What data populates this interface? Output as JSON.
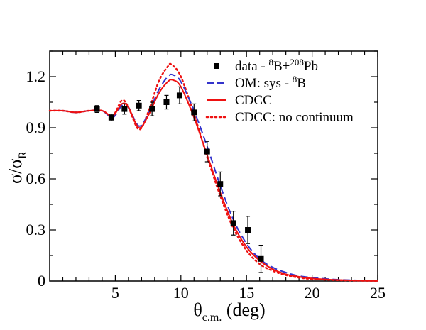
{
  "chart_data": {
    "type": "scatter",
    "xlabel": {
      "main": "θ",
      "sub": "c.m.",
      "rest": " (deg)"
    },
    "ylabel": {
      "main": "σ/σ",
      "sub": "R"
    },
    "xlim": [
      0,
      25
    ],
    "ylim": [
      0,
      1.35
    ],
    "xticks": [
      5,
      10,
      15,
      20,
      25
    ],
    "yticks": [
      0,
      0.3,
      0.6,
      0.9,
      1.2
    ],
    "ytick_labels": [
      "0",
      "0.3",
      "0.6",
      "0.9",
      "1.2"
    ],
    "grid": false,
    "legend_position": "top-right",
    "legend": [
      {
        "key": "data",
        "parts": [
          {
            "t": "data - "
          },
          {
            "t": "8",
            "sup": true
          },
          {
            "t": "B+"
          },
          {
            "t": "208",
            "sup": true
          },
          {
            "t": "Pb"
          }
        ]
      },
      {
        "key": "om",
        "parts": [
          {
            "t": "OM: sys - "
          },
          {
            "t": "8",
            "sup": true
          },
          {
            "t": "B"
          }
        ]
      },
      {
        "key": "cdcc",
        "parts": [
          {
            "t": "CDCC"
          }
        ]
      },
      {
        "key": "nocont",
        "parts": [
          {
            "t": "CDCC: no continuum"
          }
        ]
      }
    ],
    "colors": {
      "data": "#000000",
      "om": "#3333cc",
      "cdcc": "#ee1111",
      "nocont": "#ee1111"
    },
    "data_points": [
      {
        "x": 3.6,
        "y": 1.01,
        "err": 0.02
      },
      {
        "x": 4.7,
        "y": 0.96,
        "err": 0.02
      },
      {
        "x": 5.7,
        "y": 1.01,
        "err": 0.03
      },
      {
        "x": 6.8,
        "y": 1.03,
        "err": 0.03
      },
      {
        "x": 7.8,
        "y": 1.01,
        "err": 0.04
      },
      {
        "x": 8.9,
        "y": 1.05,
        "err": 0.04
      },
      {
        "x": 9.9,
        "y": 1.09,
        "err": 0.05
      },
      {
        "x": 11.0,
        "y": 0.99,
        "err": 0.05
      },
      {
        "x": 12.0,
        "y": 0.76,
        "err": 0.06
      },
      {
        "x": 13.0,
        "y": 0.57,
        "err": 0.07
      },
      {
        "x": 14.0,
        "y": 0.34,
        "err": 0.07
      },
      {
        "x": 15.1,
        "y": 0.3,
        "err": 0.08
      },
      {
        "x": 16.1,
        "y": 0.13,
        "err": 0.08
      }
    ],
    "series": [
      {
        "key": "om",
        "style": "dashed",
        "x": [
          0,
          1,
          2,
          3,
          4,
          4.8,
          5.5,
          6.0,
          6.8,
          7.5,
          8.3,
          9.0,
          9.4,
          10.0,
          11.0,
          12.0,
          13.0,
          14.0,
          15.0,
          16.0,
          17.0,
          18.0,
          19.0,
          20.0,
          21.0,
          22.0,
          23.0,
          24.0,
          25.0
        ],
        "y": [
          1.0,
          1.0,
          0.99,
          1.0,
          1.0,
          0.96,
          1.03,
          1.02,
          0.91,
          0.98,
          1.12,
          1.2,
          1.21,
          1.17,
          1.0,
          0.79,
          0.56,
          0.36,
          0.22,
          0.13,
          0.08,
          0.05,
          0.03,
          0.02,
          0.013,
          0.008,
          0.005,
          0.003,
          0.002
        ]
      },
      {
        "key": "cdcc",
        "style": "solid",
        "x": [
          0,
          1,
          2,
          3,
          4,
          4.8,
          5.5,
          6.0,
          6.8,
          7.5,
          8.3,
          9.0,
          9.4,
          10.0,
          11.0,
          12.0,
          13.0,
          14.0,
          15.0,
          16.0,
          17.0,
          18.0,
          19.0,
          20.0,
          21.0,
          22.0,
          23.0,
          24.0,
          25.0
        ],
        "y": [
          1.0,
          1.0,
          0.99,
          1.0,
          1.0,
          0.97,
          1.04,
          1.02,
          0.9,
          0.97,
          1.1,
          1.17,
          1.18,
          1.14,
          0.96,
          0.74,
          0.52,
          0.33,
          0.2,
          0.12,
          0.07,
          0.04,
          0.025,
          0.015,
          0.01,
          0.006,
          0.004,
          0.002,
          0.001
        ]
      },
      {
        "key": "nocont",
        "style": "dotted",
        "x": [
          0,
          1,
          2,
          3,
          4,
          4.8,
          5.5,
          6.0,
          6.8,
          7.5,
          8.3,
          9.0,
          9.3,
          10.0,
          11.0,
          12.0,
          13.0,
          14.0,
          15.0,
          16.0,
          17.0,
          18.0,
          19.0,
          20.0,
          21.0,
          22.0,
          23.0,
          24.0,
          25.0
        ],
        "y": [
          1.0,
          1.0,
          0.99,
          1.0,
          1.0,
          0.97,
          1.06,
          1.02,
          0.89,
          0.99,
          1.17,
          1.26,
          1.27,
          1.2,
          0.98,
          0.73,
          0.5,
          0.31,
          0.18,
          0.1,
          0.06,
          0.035,
          0.02,
          0.012,
          0.008,
          0.005,
          0.003,
          0.002,
          0.001
        ]
      }
    ]
  }
}
